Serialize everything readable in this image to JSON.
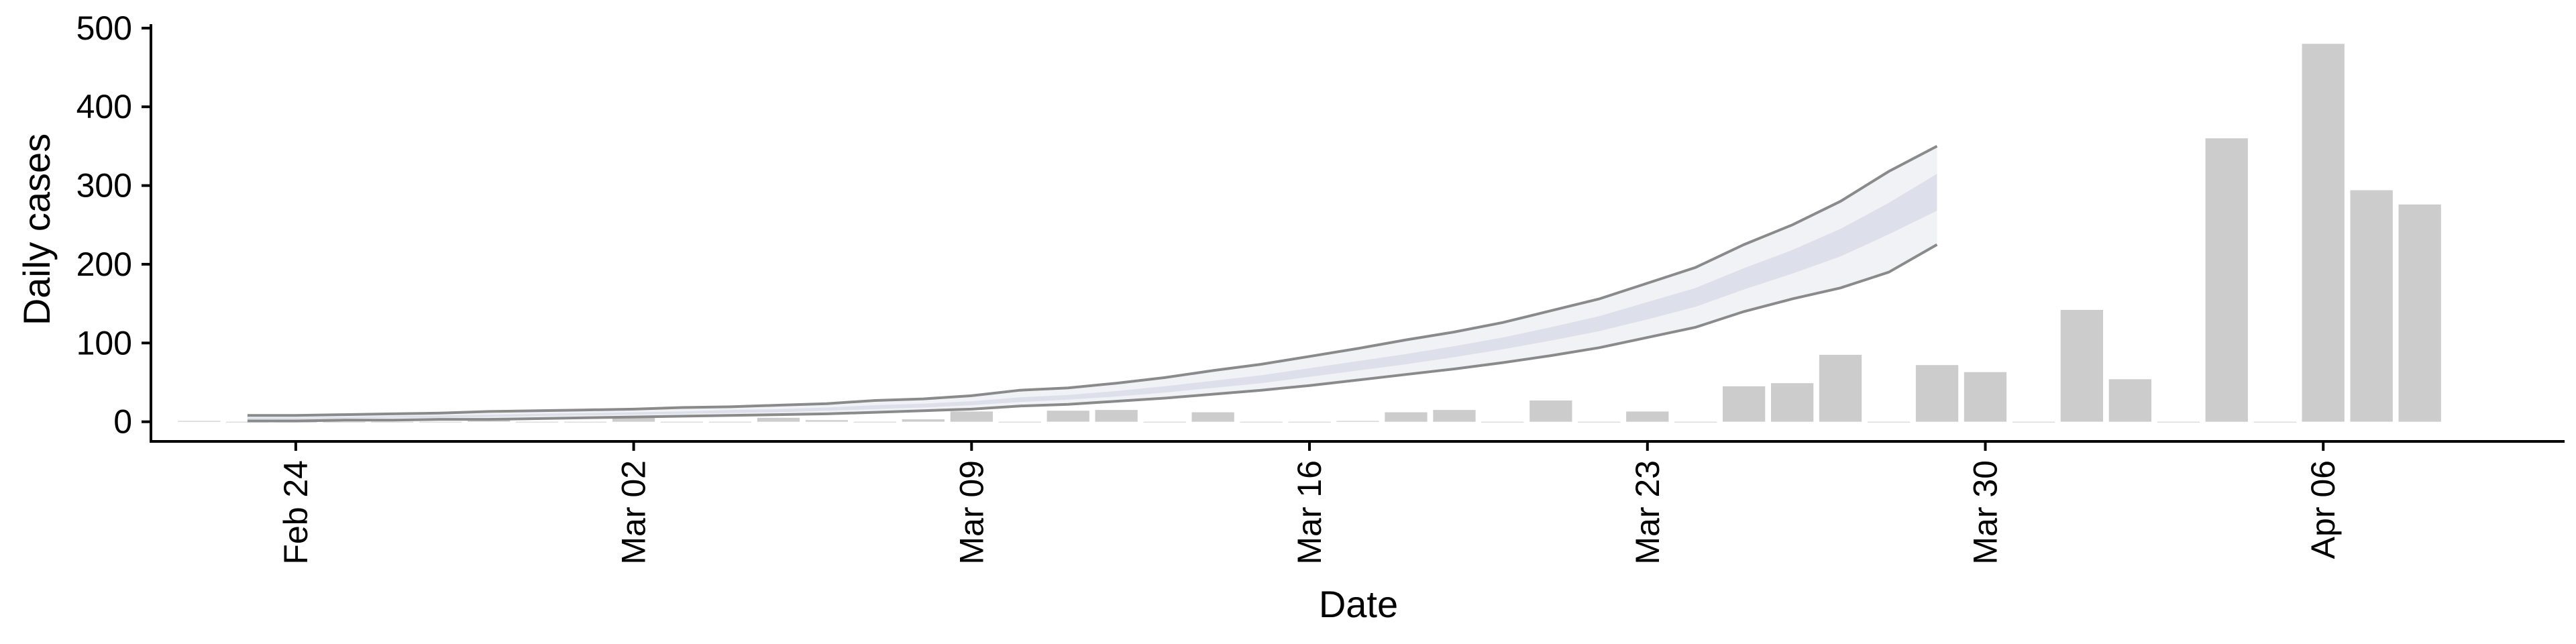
{
  "chart_data": {
    "type": "bar",
    "xlabel": "Date",
    "ylabel": "Daily cases",
    "x_start": "2020-02-21",
    "x_end": "2020-04-11",
    "ylim": [
      -25,
      505
    ],
    "y_ticks": [
      0,
      100,
      200,
      300,
      400,
      500
    ],
    "x_ticks": [
      {
        "date": "2020-02-24",
        "label": "Feb 24"
      },
      {
        "date": "2020-03-02",
        "label": "Mar 02"
      },
      {
        "date": "2020-03-09",
        "label": "Mar 09"
      },
      {
        "date": "2020-03-16",
        "label": "Mar 16"
      },
      {
        "date": "2020-03-23",
        "label": "Mar 23"
      },
      {
        "date": "2020-03-30",
        "label": "Mar 30"
      },
      {
        "date": "2020-04-06",
        "label": "Apr 06"
      }
    ],
    "observed": {
      "dates": [
        "2020-02-22",
        "2020-02-23",
        "2020-02-24",
        "2020-02-25",
        "2020-02-26",
        "2020-02-27",
        "2020-02-28",
        "2020-02-29",
        "2020-03-01",
        "2020-03-02",
        "2020-03-03",
        "2020-03-04",
        "2020-03-05",
        "2020-03-06",
        "2020-03-07",
        "2020-03-08",
        "2020-03-09",
        "2020-03-10",
        "2020-03-11",
        "2020-03-12",
        "2020-03-13",
        "2020-03-14",
        "2020-03-15",
        "2020-03-16",
        "2020-03-17",
        "2020-03-18",
        "2020-03-19",
        "2020-03-20",
        "2020-03-21",
        "2020-03-22",
        "2020-03-23",
        "2020-03-24",
        "2020-03-25",
        "2020-03-26",
        "2020-03-27",
        "2020-03-28",
        "2020-03-29",
        "2020-03-30",
        "2020-03-31",
        "2020-04-01",
        "2020-04-02",
        "2020-04-03",
        "2020-04-04",
        "2020-04-05",
        "2020-04-06",
        "2020-04-07",
        "2020-04-08"
      ],
      "values": [
        1,
        0,
        0,
        0,
        0,
        0,
        2,
        0,
        0,
        5,
        0,
        0,
        5,
        2,
        0,
        3,
        13,
        0,
        14,
        15,
        0,
        12,
        0,
        0,
        1,
        12,
        15,
        0,
        27,
        0,
        13,
        0,
        45,
        49,
        85,
        0,
        72,
        63,
        0,
        142,
        54,
        0,
        360,
        0,
        480,
        294,
        276
      ]
    },
    "estimate": {
      "dates": [
        "2020-02-23",
        "2020-02-24",
        "2020-02-25",
        "2020-02-26",
        "2020-02-27",
        "2020-02-28",
        "2020-02-29",
        "2020-03-01",
        "2020-03-02",
        "2020-03-03",
        "2020-03-04",
        "2020-03-05",
        "2020-03-06",
        "2020-03-07",
        "2020-03-08",
        "2020-03-09",
        "2020-03-10",
        "2020-03-11",
        "2020-03-12",
        "2020-03-13",
        "2020-03-14",
        "2020-03-15",
        "2020-03-16",
        "2020-03-17",
        "2020-03-18",
        "2020-03-19",
        "2020-03-20",
        "2020-03-21",
        "2020-03-22",
        "2020-03-23",
        "2020-03-24",
        "2020-03-25",
        "2020-03-26",
        "2020-03-27",
        "2020-03-28",
        "2020-03-29"
      ],
      "upper": [
        8,
        8,
        9,
        10,
        11,
        13,
        14,
        15,
        16,
        18,
        19,
        21,
        23,
        27,
        29,
        33,
        40,
        43,
        49,
        56,
        65,
        73,
        83,
        93,
        104,
        114,
        126,
        141,
        156,
        176,
        196,
        225,
        250,
        280,
        318,
        350
      ],
      "outer_upper": [
        7,
        7,
        8,
        9,
        10,
        11,
        12,
        13,
        14,
        16,
        17,
        19,
        21,
        24,
        26,
        30,
        36,
        39,
        45,
        51,
        59,
        66,
        76,
        86,
        96,
        106,
        118,
        132,
        146,
        166,
        185,
        212,
        236,
        265,
        300,
        335
      ],
      "inner_upper": [
        5,
        5,
        6,
        7,
        8,
        9,
        10,
        11,
        12,
        13,
        15,
        16,
        18,
        21,
        23,
        26,
        31,
        34,
        39,
        45,
        52,
        59,
        68,
        77,
        86,
        96,
        107,
        120,
        134,
        152,
        170,
        195,
        218,
        245,
        278,
        315
      ],
      "inner_lower": [
        3,
        3,
        4,
        5,
        5,
        6,
        7,
        8,
        9,
        10,
        11,
        12,
        14,
        16,
        18,
        21,
        25,
        28,
        32,
        37,
        43,
        49,
        57,
        65,
        73,
        82,
        92,
        103,
        115,
        130,
        146,
        168,
        188,
        210,
        238,
        268
      ],
      "outer_lower": [
        2,
        2,
        3,
        3,
        4,
        4,
        5,
        6,
        7,
        8,
        9,
        10,
        11,
        13,
        15,
        17,
        21,
        23,
        27,
        31,
        36,
        42,
        49,
        56,
        63,
        71,
        80,
        90,
        100,
        115,
        129,
        150,
        168,
        185,
        215,
        232
      ],
      "lower": [
        1,
        1,
        2,
        2,
        3,
        3,
        4,
        5,
        6,
        7,
        8,
        9,
        10,
        12,
        14,
        16,
        20,
        22,
        26,
        30,
        35,
        40,
        46,
        53,
        60,
        67,
        75,
        84,
        94,
        107,
        120,
        140,
        156,
        170,
        190,
        225
      ]
    }
  }
}
